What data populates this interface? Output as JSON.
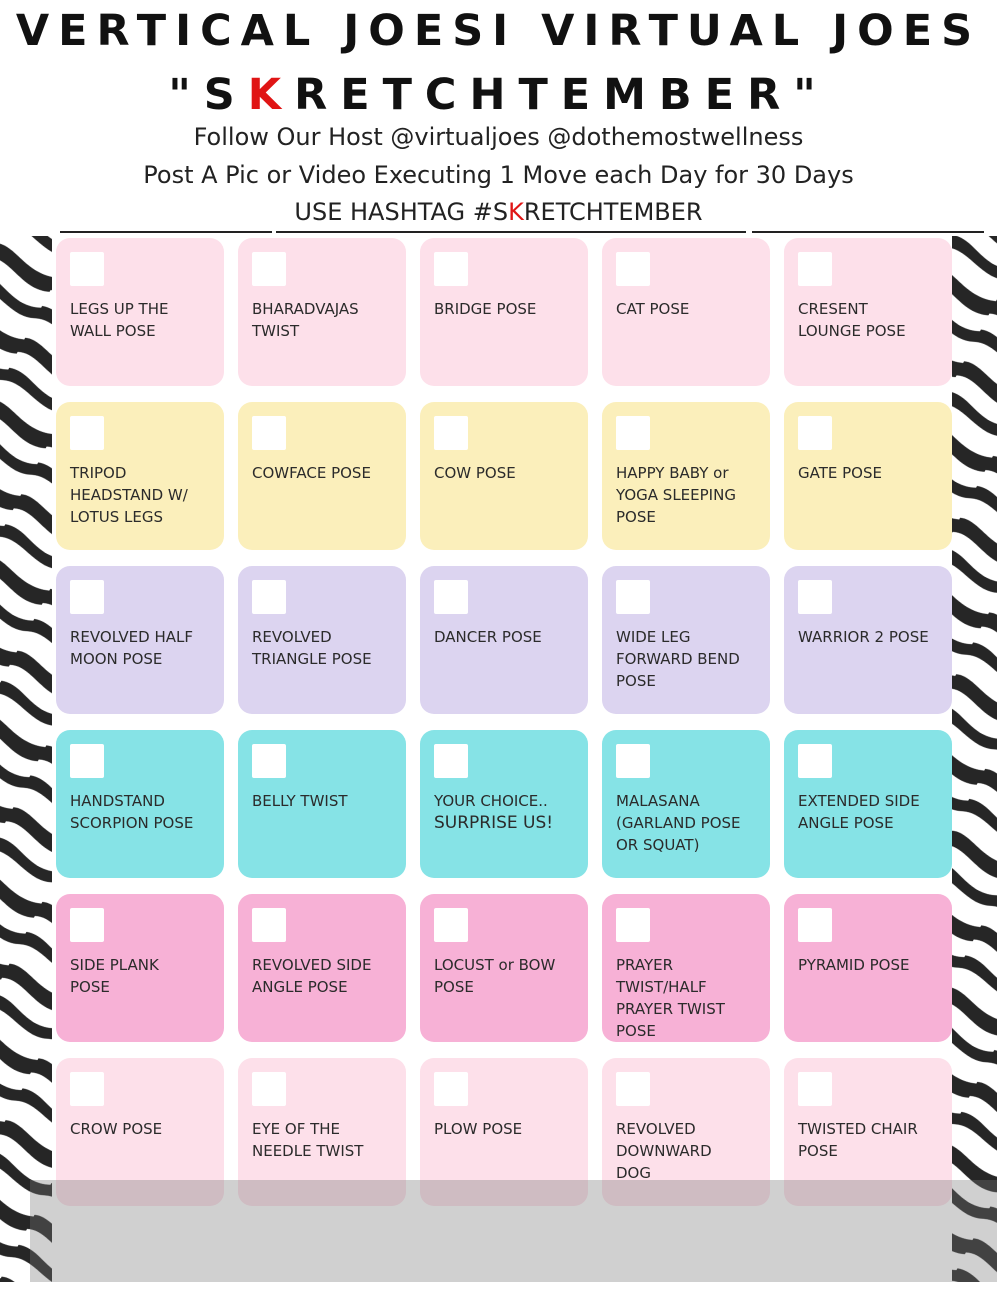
{
  "header": {
    "title_line1": "VERTICAL JOESI VIRTUAL JOES",
    "title_line2_pre": "\"S",
    "title_line2_red": "K",
    "title_line2_post": "RETCHTEMBER\"",
    "host_line": "Follow Our Host @virtualjoes @dothemostwellness",
    "instruction_line": "Post A Pic or Video Executing 1 Move each Day for 30 Days",
    "hashtag_pre": "USE HASHTAG #S",
    "hashtag_red": "K",
    "hashtag_post": "RETCHTEMBER"
  },
  "colors": {
    "row1": "#fde0ea",
    "row2": "#fbefbb",
    "row3": "#dcd4f0",
    "row4": "#86e3e6",
    "row5": "#f7b1d6",
    "row6": "#fde0ea",
    "accent_red": "#e01515"
  },
  "grid": {
    "rows": [
      [
        {
          "label": "LEGS UP THE\nWALL POSE"
        },
        {
          "label": "BHARADVAJAS\nTWIST"
        },
        {
          "label": "BRIDGE POSE"
        },
        {
          "label": "CAT POSE"
        },
        {
          "label": "CRESENT\nLOUNGE POSE"
        }
      ],
      [
        {
          "label": "TRIPOD\nHEADSTAND W/\nLOTUS LEGS"
        },
        {
          "label": "COWFACE POSE"
        },
        {
          "label": " COW POSE"
        },
        {
          "label": "HAPPY BABY or\nYOGA SLEEPING\nPOSE"
        },
        {
          "label": "GATE POSE"
        }
      ],
      [
        {
          "label": "REVOLVED HALF\nMOON POSE"
        },
        {
          "label": "REVOLVED\nTRIANGLE POSE"
        },
        {
          "label": "DANCER POSE"
        },
        {
          "label": "WIDE LEG\nFORWARD BEND\nPOSE"
        },
        {
          "label": "WARRIOR 2 POSE"
        }
      ],
      [
        {
          "label": "HANDSTAND\nSCORPION POSE"
        },
        {
          "label": "BELLY TWIST"
        },
        {
          "label": "YOUR CHOICE..",
          "label2": "SURPRISE US!"
        },
        {
          "label": "MALASANA\n(GARLAND POSE\nOR SQUAT)"
        },
        {
          "label": "EXTENDED SIDE\nANGLE POSE"
        }
      ],
      [
        {
          "label": "SIDE PLANK\nPOSE"
        },
        {
          "label": "REVOLVED SIDE\nANGLE POSE"
        },
        {
          "label": "LOCUST or BOW\nPOSE"
        },
        {
          "label": "PRAYER\nTWIST/HALF\nPRAYER TWIST\nPOSE"
        },
        {
          "label": "PYRAMID POSE"
        }
      ],
      [
        {
          "label": "CROW POSE"
        },
        {
          "label": "EYE OF THE\nNEEDLE TWIST"
        },
        {
          "label": "PLOW POSE"
        },
        {
          "label": "REVOLVED\nDOWNWARD\nDOG"
        },
        {
          "label": "TWISTED CHAIR\nPOSE"
        }
      ]
    ]
  }
}
